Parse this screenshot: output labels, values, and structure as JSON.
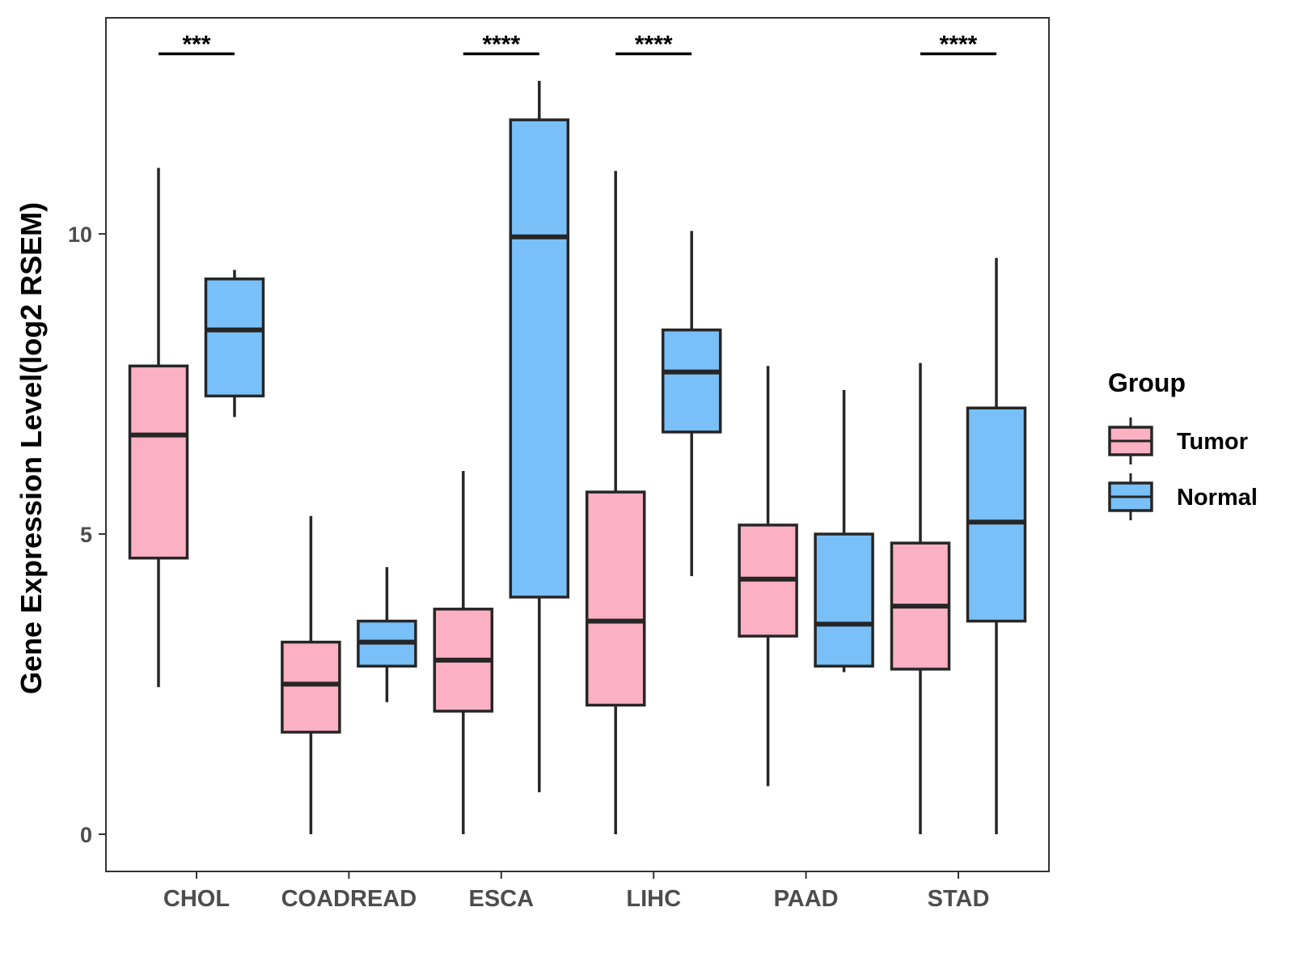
{
  "chart_data": {
    "type": "boxplot",
    "title": "",
    "xlabel": "",
    "ylabel": "Gene Expression Level(log2 RSEM)",
    "ylim": [
      -0.62,
      13.6
    ],
    "yticks": [
      0,
      5,
      10
    ],
    "grid": false,
    "legend": {
      "title": "Group",
      "position": "right",
      "entries": [
        {
          "name": "Tumor",
          "color": "#FBB0C3"
        },
        {
          "name": "Normal",
          "color": "#79C0F9"
        }
      ]
    },
    "categories": [
      "CHOL",
      "COADREAD",
      "ESCA",
      "LIHC",
      "PAAD",
      "STAD"
    ],
    "series": [
      {
        "name": "Tumor",
        "color": "#FBB0C3",
        "boxes": [
          {
            "min": 2.45,
            "q1": 4.6,
            "median": 6.65,
            "q3": 7.8,
            "max": 11.1
          },
          {
            "min": 0.0,
            "q1": 1.7,
            "median": 2.5,
            "q3": 3.2,
            "max": 5.3
          },
          {
            "min": 0.0,
            "q1": 2.05,
            "median": 2.9,
            "q3": 3.75,
            "max": 6.05
          },
          {
            "min": 0.0,
            "q1": 2.15,
            "median": 3.55,
            "q3": 5.7,
            "max": 11.05
          },
          {
            "min": 0.8,
            "q1": 3.3,
            "median": 4.25,
            "q3": 5.15,
            "max": 7.8
          },
          {
            "min": 0.0,
            "q1": 2.75,
            "median": 3.8,
            "q3": 4.85,
            "max": 7.85
          }
        ]
      },
      {
        "name": "Normal",
        "color": "#79C0F9",
        "boxes": [
          {
            "min": 6.95,
            "q1": 7.3,
            "median": 8.4,
            "q3": 9.25,
            "max": 9.4
          },
          {
            "min": 2.2,
            "q1": 2.8,
            "median": 3.2,
            "q3": 3.55,
            "max": 4.45
          },
          {
            "min": 0.7,
            "q1": 3.95,
            "median": 9.95,
            "q3": 11.9,
            "max": 12.55
          },
          {
            "min": 4.3,
            "q1": 6.7,
            "median": 7.7,
            "q3": 8.4,
            "max": 10.05
          },
          {
            "min": 2.7,
            "q1": 2.8,
            "median": 3.5,
            "q3": 5.0,
            "max": 7.4
          },
          {
            "min": 0.0,
            "q1": 3.55,
            "median": 5.2,
            "q3": 7.1,
            "max": 9.6
          }
        ]
      }
    ],
    "significance": [
      {
        "category": "CHOL",
        "label": "***"
      },
      {
        "category": "COADREAD",
        "label": ""
      },
      {
        "category": "ESCA",
        "label": "****"
      },
      {
        "category": "LIHC",
        "label": "****"
      },
      {
        "category": "PAAD",
        "label": ""
      },
      {
        "category": "STAD",
        "label": "****"
      }
    ],
    "significance_level": 13.0
  }
}
